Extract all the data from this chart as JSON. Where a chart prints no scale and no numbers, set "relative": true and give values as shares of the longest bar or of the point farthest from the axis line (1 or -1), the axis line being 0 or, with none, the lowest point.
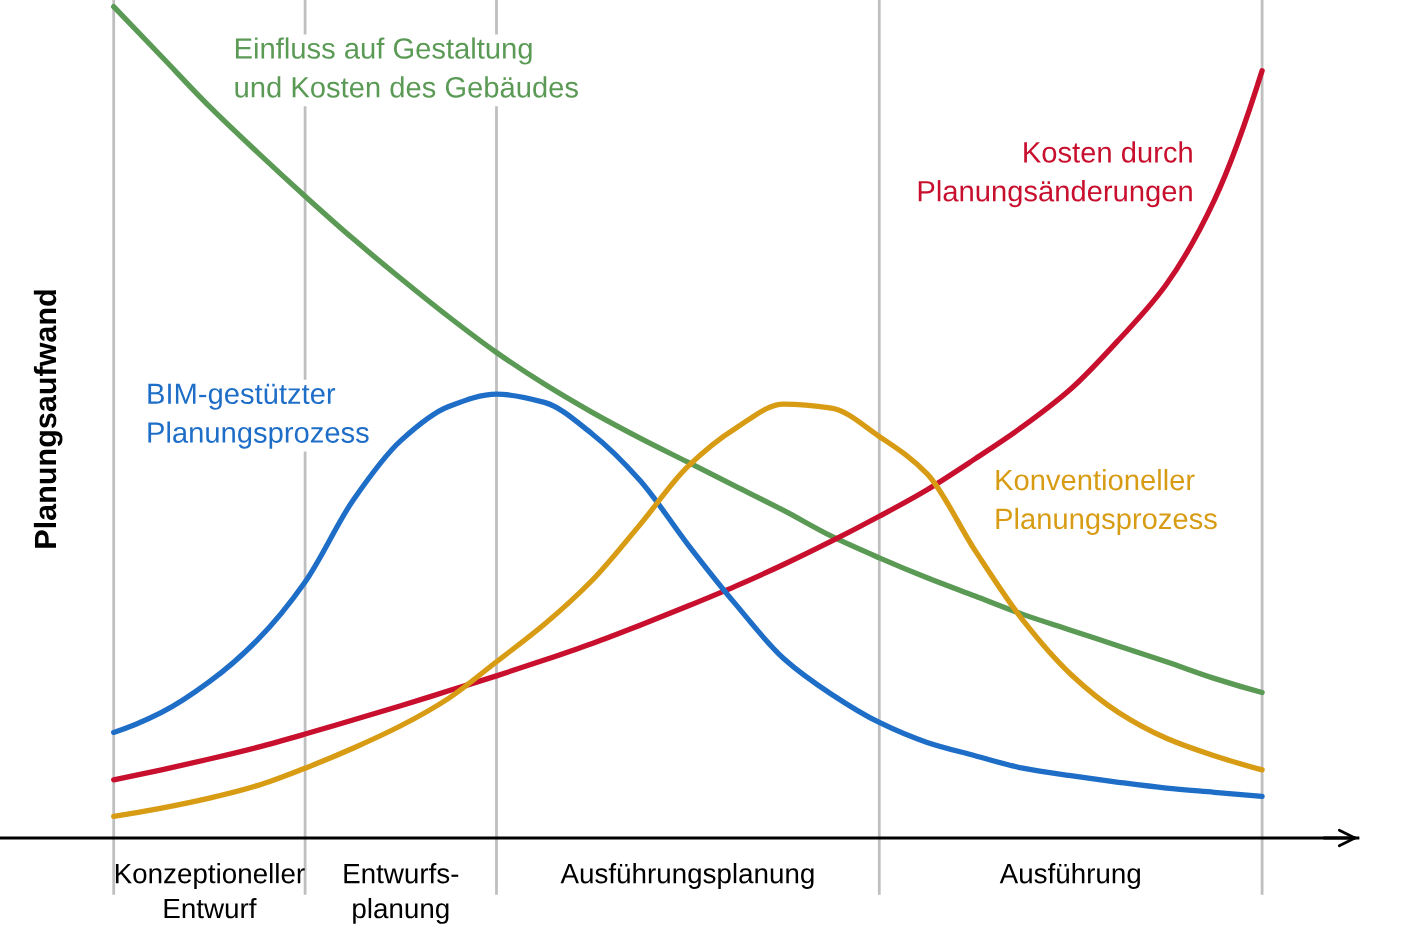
{
  "chart_data": {
    "type": "line",
    "relative": true,
    "ylabel": "Planungsaufwand",
    "grid": "x",
    "categories": [
      null,
      null,
      "Konzeptioneller\nEntwurf",
      null,
      null,
      null,
      "Entwurfs-\nplanung",
      null,
      null,
      null,
      null,
      null,
      "Ausführungsplanung",
      null,
      null,
      null,
      null,
      null,
      null,
      null,
      "Ausführung",
      null,
      null,
      null,
      null
    ],
    "series": [
      {
        "name": "Einfluss auf Gestaltung\nund Kosten des Gebäudes",
        "color": "#5a9a55",
        "values": [
          1.0,
          0.94,
          0.88,
          0.825,
          0.772,
          0.721,
          0.673,
          0.627,
          0.584,
          0.546,
          0.512,
          0.481,
          0.452,
          0.423,
          0.394,
          0.363,
          0.337,
          0.313,
          0.291,
          0.269,
          0.25,
          0.231,
          0.212,
          0.192,
          0.175
        ]
      },
      {
        "name": "Kosten durch\nPlanungsänderungen",
        "color": "#c8102e",
        "values": [
          0.07,
          0.082,
          0.095,
          0.109,
          0.125,
          0.142,
          0.159,
          0.177,
          0.195,
          0.214,
          0.234,
          0.256,
          0.279,
          0.303,
          0.329,
          0.357,
          0.387,
          0.419,
          0.456,
          0.495,
          0.54,
          0.599,
          0.666,
          0.767,
          0.923
        ]
      },
      {
        "name": "BIM-gestützter\nPlanungsprozess",
        "color": "#1e6ec8",
        "values": [
          0.127,
          0.151,
          0.188,
          0.238,
          0.308,
          0.406,
          0.478,
          0.519,
          0.534,
          0.524,
          0.486,
          0.43,
          0.353,
          0.281,
          0.216,
          0.173,
          0.139,
          0.115,
          0.099,
          0.084,
          0.075,
          0.067,
          0.06,
          0.055,
          0.05
        ]
      },
      {
        "name": "Konventioneller\nPlanungsprozess",
        "color": "#d89c14",
        "values": [
          0.026,
          0.036,
          0.048,
          0.063,
          0.084,
          0.108,
          0.135,
          0.168,
          0.212,
          0.257,
          0.31,
          0.377,
          0.447,
          0.493,
          0.522,
          0.517,
          0.483,
          0.438,
          0.346,
          0.262,
          0.197,
          0.151,
          0.12,
          0.099,
          0.082
        ]
      }
    ]
  }
}
